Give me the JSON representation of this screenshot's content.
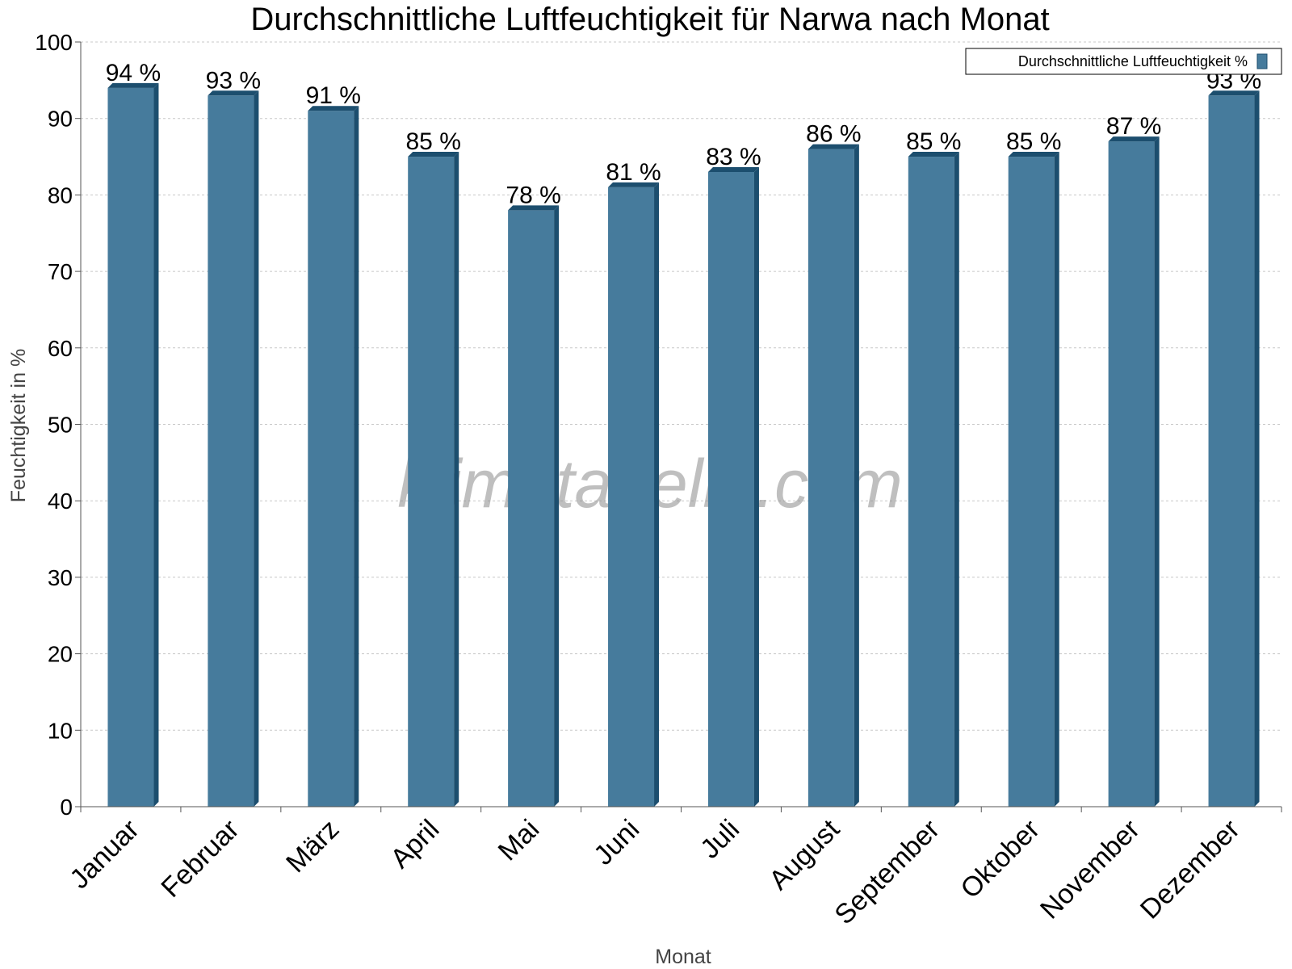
{
  "chart_data": {
    "type": "bar",
    "title": "Durchschnittliche Luftfeuchtigkeit für Narwa nach Monat",
    "xlabel": "Monat",
    "ylabel": "Feuchtigkeit in %",
    "categories": [
      "Januar",
      "Februar",
      "März",
      "April",
      "Mai",
      "Juni",
      "Juli",
      "August",
      "September",
      "Oktober",
      "November",
      "Dezember"
    ],
    "series": [
      {
        "name": "Durchschnittliche Luftfeuchtigkeit %",
        "values": [
          94,
          93,
          91,
          85,
          78,
          81,
          83,
          86,
          85,
          85,
          87,
          93
        ],
        "labels": [
          "94 %",
          "93 %",
          "91 %",
          "85 %",
          "78 %",
          "81 %",
          "83 %",
          "86 %",
          "85 %",
          "85 %",
          "87 %",
          "93 %"
        ]
      }
    ],
    "ylim": [
      0,
      100
    ],
    "yticks": [
      "0",
      "10",
      "20",
      "30",
      "40",
      "50",
      "60",
      "70",
      "80",
      "90",
      "100"
    ],
    "grid": true,
    "legend_position": "top-right",
    "colors": {
      "bar": "#467b9c",
      "bar_side": "#1c4e6e",
      "bar_top": "#1c4e6e",
      "grid": "#c8c8c8",
      "axis": "#555555"
    },
    "watermark": "klimatabelle.com"
  }
}
